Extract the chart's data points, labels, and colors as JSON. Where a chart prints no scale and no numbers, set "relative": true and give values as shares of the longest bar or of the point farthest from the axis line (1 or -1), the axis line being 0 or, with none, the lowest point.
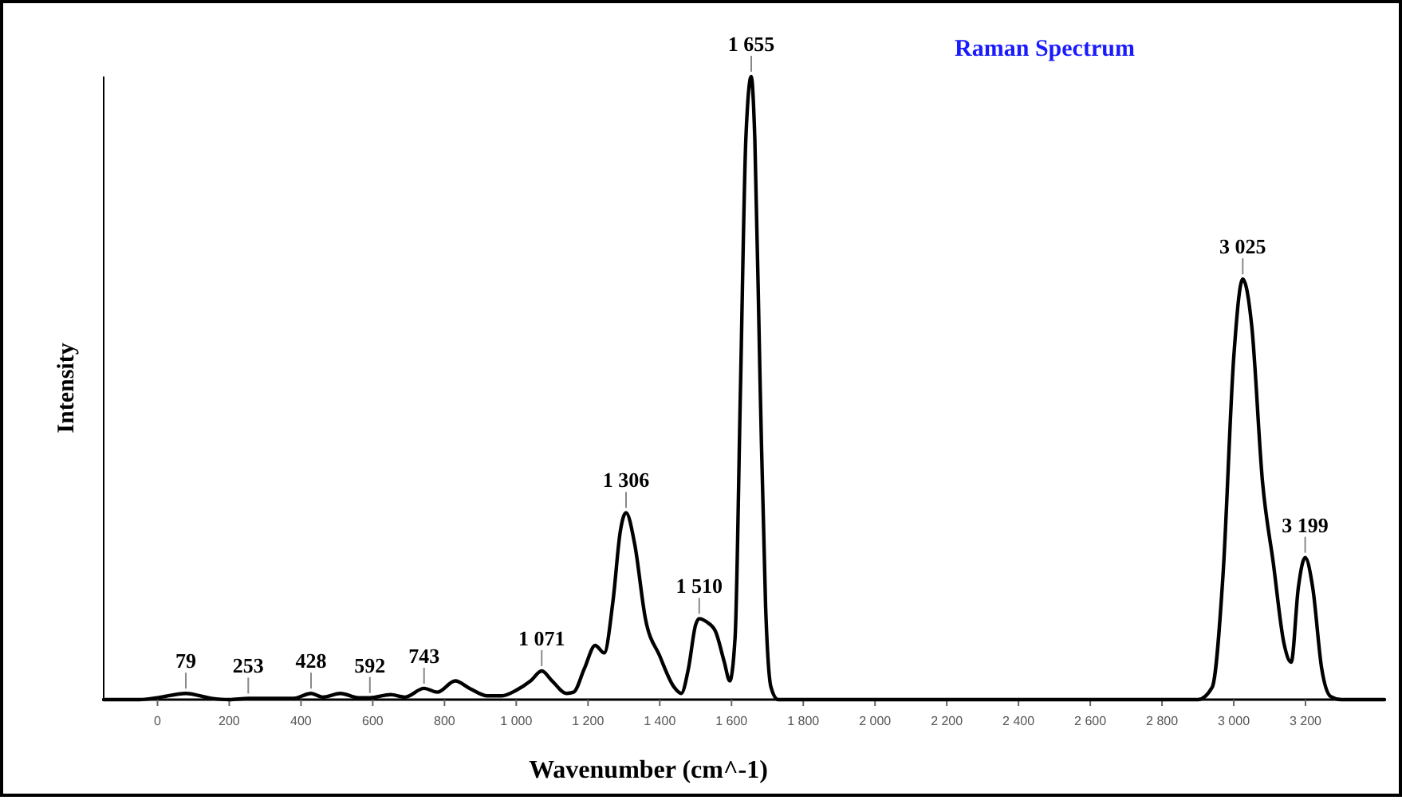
{
  "chart_data": {
    "type": "line",
    "title": "Raman Spectrum",
    "xlabel": "Wavenumber (cm^-1)",
    "ylabel": "Intensity",
    "relative": true,
    "marker": "none",
    "line_style": "solid",
    "grid": false,
    "xlim": [
      -150,
      3420
    ],
    "xticks": [
      {
        "value": 0,
        "label": "0"
      },
      {
        "value": 200,
        "label": "200"
      },
      {
        "value": 400,
        "label": "400"
      },
      {
        "value": 600,
        "label": "600"
      },
      {
        "value": 800,
        "label": "800"
      },
      {
        "value": 1000,
        "label": "1 000"
      },
      {
        "value": 1200,
        "label": "1 200"
      },
      {
        "value": 1400,
        "label": "1 400"
      },
      {
        "value": 1600,
        "label": "1 600"
      },
      {
        "value": 1800,
        "label": "1 800"
      },
      {
        "value": 2000,
        "label": "2 000"
      },
      {
        "value": 2200,
        "label": "2 200"
      },
      {
        "value": 2400,
        "label": "2 400"
      },
      {
        "value": 2600,
        "label": "2 600"
      },
      {
        "value": 2800,
        "label": "2 800"
      },
      {
        "value": 3000,
        "label": "3 000"
      },
      {
        "value": 3200,
        "label": "3 200"
      }
    ],
    "series": [
      {
        "color": "#000000",
        "x": [
          -150,
          -50,
          0,
          79,
          150,
          200,
          253,
          380,
          428,
          460,
          510,
          560,
          592,
          650,
          690,
          743,
          780,
          830,
          870,
          920,
          960,
          1000,
          1040,
          1071,
          1100,
          1140,
          1160,
          1190,
          1220,
          1245,
          1270,
          1290,
          1306,
          1330,
          1360,
          1400,
          1440,
          1460,
          1480,
          1500,
          1510,
          1530,
          1555,
          1580,
          1595,
          1610,
          1625,
          1640,
          1655,
          1665,
          1680,
          1695,
          1710,
          1730,
          2900,
          2940,
          2970,
          3000,
          3025,
          3050,
          3080,
          3110,
          3140,
          3160,
          3180,
          3199,
          3220,
          3245,
          3270,
          3300,
          3420
        ],
        "values": [
          0,
          0,
          0.003,
          0.01,
          0.002,
          0,
          0.002,
          0.002,
          0.01,
          0.004,
          0.01,
          0.003,
          0.003,
          0.008,
          0.004,
          0.018,
          0.012,
          0.03,
          0.018,
          0.006,
          0.006,
          0.015,
          0.03,
          0.046,
          0.03,
          0.01,
          0.012,
          0.05,
          0.087,
          0.075,
          0.16,
          0.27,
          0.3,
          0.25,
          0.13,
          0.07,
          0.02,
          0.01,
          0.05,
          0.12,
          0.13,
          0.125,
          0.11,
          0.06,
          0.03,
          0.1,
          0.5,
          0.9,
          1,
          0.9,
          0.5,
          0.15,
          0.02,
          0,
          0,
          0.02,
          0.2,
          0.55,
          0.675,
          0.6,
          0.35,
          0.22,
          0.09,
          0.06,
          0.18,
          0.228,
          0.18,
          0.05,
          0.005,
          0,
          0
        ]
      }
    ],
    "annotations": [
      {
        "text": "79",
        "x": 79,
        "y": 0.01
      },
      {
        "text": "253",
        "x": 253,
        "y": 0.002
      },
      {
        "text": "428",
        "x": 428,
        "y": 0.01
      },
      {
        "text": "592",
        "x": 592,
        "y": 0.003
      },
      {
        "text": "743",
        "x": 743,
        "y": 0.018
      },
      {
        "text": "1 071",
        "x": 1071,
        "y": 0.046
      },
      {
        "text": "1 306",
        "x": 1306,
        "y": 0.3
      },
      {
        "text": "1 510",
        "x": 1510,
        "y": 0.13
      },
      {
        "text": "1 655",
        "x": 1655,
        "y": 1
      },
      {
        "text": "3 025",
        "x": 3025,
        "y": 0.675
      },
      {
        "text": "3 199",
        "x": 3199,
        "y": 0.228
      }
    ]
  }
}
